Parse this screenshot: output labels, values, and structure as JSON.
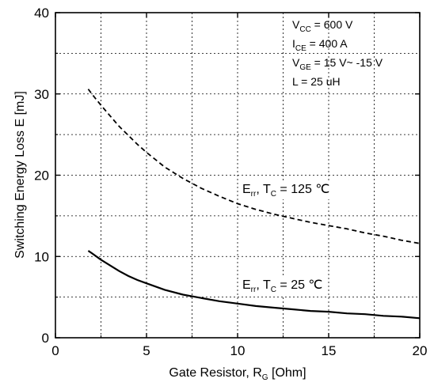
{
  "chart_data": {
    "type": "line",
    "title": "",
    "xlabel": {
      "main": "Gate Resistor, R",
      "sub": "G",
      "unit": " [Ohm]"
    },
    "ylabel": "Switching Energy Loss E [mJ]",
    "xlim": [
      0,
      20
    ],
    "ylim": [
      0,
      40
    ],
    "x_ticks": [
      0,
      5,
      10,
      15,
      20
    ],
    "y_ticks": [
      0,
      10,
      20,
      30,
      40
    ],
    "x_tick_labels": [
      "0",
      "5",
      "10",
      "15",
      "20"
    ],
    "y_tick_labels": [
      "0",
      "10",
      "20",
      "30",
      "40"
    ],
    "x_minor_grid": [
      2.5,
      7.5,
      12.5,
      17.5
    ],
    "y_minor_grid": [
      5,
      15,
      25,
      35
    ],
    "grid": "dotted",
    "conditions": [
      {
        "main": "V",
        "sub": "CC",
        "rest": " = 600 V"
      },
      {
        "main": "I",
        "sub": "CE",
        "rest": " = 400 A"
      },
      {
        "main": "V",
        "sub": "GE",
        "rest": " = 15 V~ -15 V"
      },
      {
        "main": "L",
        "sub": "",
        "rest": "  = 25 uH"
      }
    ],
    "series": [
      {
        "label": {
          "main": "E",
          "sub1": "rr",
          "mid": ", T",
          "sub2": "C",
          "rest": " = 125 ℃"
        },
        "style": "dashed",
        "x": [
          1.8,
          2,
          2.5,
          3,
          3.5,
          4,
          4.5,
          5,
          6,
          7,
          8,
          9,
          10,
          11,
          12,
          13,
          14,
          15,
          16,
          17,
          18,
          19,
          20
        ],
        "y": [
          30.6,
          30.0,
          28.6,
          27.3,
          26.0,
          24.9,
          23.8,
          22.8,
          21.0,
          19.6,
          18.4,
          17.4,
          16.5,
          15.8,
          15.2,
          14.7,
          14.2,
          13.8,
          13.4,
          12.9,
          12.5,
          12.0,
          11.6
        ]
      },
      {
        "label": {
          "main": "E",
          "sub1": "rr",
          "mid": ", T",
          "sub2": "C",
          "rest": " = 25 ℃"
        },
        "style": "solid",
        "x": [
          1.8,
          2,
          2.5,
          3,
          3.5,
          4,
          4.5,
          5,
          6,
          7,
          8,
          9,
          10,
          11,
          12,
          13,
          14,
          15,
          16,
          17,
          18,
          19,
          20
        ],
        "y": [
          10.7,
          10.4,
          9.6,
          8.9,
          8.2,
          7.6,
          7.1,
          6.7,
          5.9,
          5.3,
          4.9,
          4.5,
          4.2,
          3.9,
          3.7,
          3.5,
          3.3,
          3.2,
          3.0,
          2.9,
          2.7,
          2.6,
          2.4
        ]
      }
    ]
  }
}
